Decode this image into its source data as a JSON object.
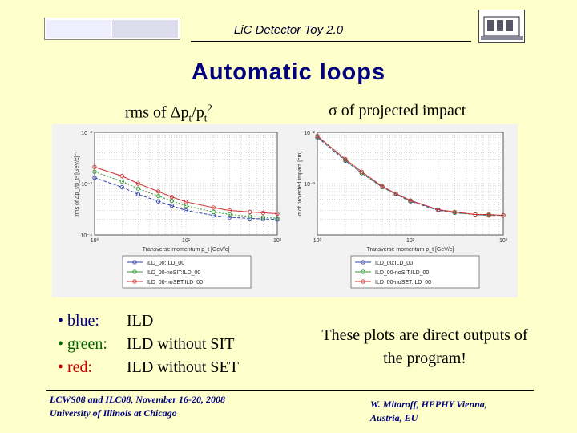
{
  "header": {
    "title": "LiC Detector Toy 2.0"
  },
  "title": "Automatic loops",
  "labels": {
    "left_plot_prefix": "rms of Δp",
    "left_plot_sub1": "t",
    "left_plot_mid": "/p",
    "left_plot_sub2": "t",
    "left_plot_sup": "2",
    "right_plot": "σ of projected impact"
  },
  "bullets": [
    {
      "key": "• blue:",
      "value": "ILD",
      "color": "#000080"
    },
    {
      "key": "• green:",
      "value": "ILD without SIT",
      "color": "#006600"
    },
    {
      "key": "• red:",
      "value": "ILD without SET",
      "color": "#cc0000"
    }
  ],
  "note": "These plots are direct outputs of the program!",
  "footer": {
    "left_line1": "LCWS08 and ILC08, November 16-20, 2008",
    "left_line2": "University of Illinois at Chicago",
    "right_line1": "W. Mitaroff, HEPHY Vienna,",
    "right_line2": "Austria, EU"
  },
  "chart_data": [
    {
      "type": "line",
      "xlabel": "Transverse momentum p_t [GeV/c]",
      "ylabel": "rms of Δp_t/p_t² [GeV/c]⁻¹",
      "log_x": true,
      "log_y": true,
      "xlim": [
        1,
        100
      ],
      "ylim": [
        0.0001,
        0.01
      ],
      "x_ticks": [
        "10⁰",
        "10¹",
        "10²"
      ],
      "y_ticks": [
        "10⁻²",
        "10⁻³",
        "10⁻⁴"
      ],
      "x": [
        1,
        2,
        3,
        5,
        7,
        10,
        20,
        30,
        50,
        70,
        100
      ],
      "series": [
        {
          "name": "ILD_00:ILD_00",
          "color": "#3344aa",
          "values": [
            0.0013,
            0.00085,
            0.00062,
            0.00045,
            0.00037,
            0.0003,
            0.00024,
            0.00022,
            0.00021,
            0.000205,
            0.0002
          ]
        },
        {
          "name": "ILD_00-noSIT:ILD_00",
          "color": "#339933",
          "values": [
            0.0017,
            0.0011,
            0.0008,
            0.00057,
            0.00046,
            0.00037,
            0.00028,
            0.00025,
            0.00023,
            0.00022,
            0.00021
          ]
        },
        {
          "name": "ILD_00-noSET:ILD_00",
          "color": "#cc3333",
          "values": [
            0.0021,
            0.0014,
            0.001,
            0.0007,
            0.00055,
            0.00044,
            0.00034,
            0.0003,
            0.00028,
            0.00027,
            0.00026
          ]
        }
      ],
      "legend": "bottom",
      "grid": true
    },
    {
      "type": "line",
      "xlabel": "Transverse momentum p_t [GeV/c]",
      "ylabel": "σ of projected impact [cm]",
      "log_x": true,
      "log_y": true,
      "xlim": [
        1,
        100
      ],
      "ylim": [
        0.0001,
        0.01
      ],
      "x_ticks": [
        "10⁰",
        "10¹",
        "10²"
      ],
      "y_ticks": [
        "10⁻²",
        "10⁻³"
      ],
      "x": [
        1,
        2,
        3,
        5,
        7,
        10,
        20,
        30,
        50,
        70,
        100
      ],
      "series": [
        {
          "name": "ILD_00:ILD_00",
          "color": "#3344aa",
          "values": [
            0.008,
            0.0028,
            0.0016,
            0.00085,
            0.00062,
            0.00045,
            0.0003,
            0.00027,
            0.00025,
            0.00024,
            0.00024
          ]
        },
        {
          "name": "ILD_00-noSIT:ILD_00",
          "color": "#339933",
          "values": [
            0.0082,
            0.0029,
            0.0016,
            0.00086,
            0.00063,
            0.00046,
            0.00031,
            0.00027,
            0.00025,
            0.00024,
            0.00024
          ]
        },
        {
          "name": "ILD_00-noSET:ILD_00",
          "color": "#cc3333",
          "values": [
            0.0085,
            0.003,
            0.0017,
            0.00088,
            0.00064,
            0.00047,
            0.00031,
            0.00028,
            0.00025,
            0.00025,
            0.00024
          ]
        }
      ],
      "legend": "bottom",
      "grid": true
    }
  ]
}
